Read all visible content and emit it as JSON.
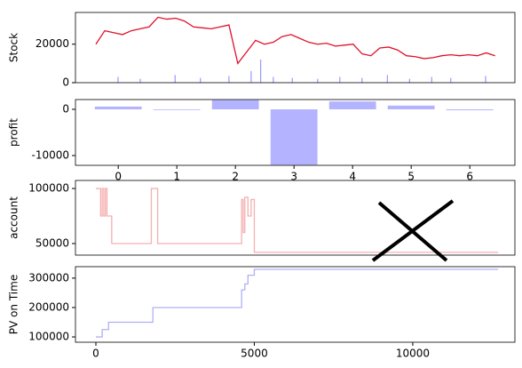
{
  "chart_data": [
    {
      "type": "line",
      "ylabel": "Stock",
      "xlim": [
        -644,
        13224
      ],
      "ylim": [
        0,
        36500
      ],
      "yticks": [
        0,
        20000
      ],
      "series": [
        {
          "type": "line",
          "color": "#e0102a",
          "x": [
            0,
            280,
            560,
            840,
            1120,
            1400,
            1680,
            1960,
            2240,
            2520,
            2800,
            3080,
            3360,
            3640,
            3920,
            4200,
            4480,
            4760,
            5040,
            5320,
            5600,
            5880,
            6160,
            6440,
            6720,
            7000,
            7280,
            7560,
            7840,
            8120,
            8400,
            8680,
            8960,
            9240,
            9520,
            9800,
            10080,
            10360,
            10640,
            10920,
            11200,
            11480,
            11760,
            12040,
            12320,
            12600
          ],
          "values": [
            20000,
            27000,
            26000,
            25000,
            27000,
            28000,
            29000,
            34000,
            33000,
            33500,
            32000,
            29000,
            28500,
            28000,
            29000,
            30000,
            10000,
            16000,
            22000,
            20000,
            21000,
            24000,
            25000,
            23000,
            21000,
            20000,
            20500,
            19000,
            19500,
            20000,
            15000,
            14000,
            18000,
            18500,
            17000,
            14000,
            13500,
            12500,
            13000,
            14000,
            14500,
            14000,
            14500,
            14000,
            15500,
            14000
          ]
        },
        {
          "type": "bar",
          "color": "#9999ff",
          "x": [
            700,
            1400,
            2500,
            3300,
            4200,
            4900,
            5200,
            5600,
            6200,
            7000,
            7700,
            8400,
            9200,
            9900,
            10600,
            11200,
            12300
          ],
          "values": [
            3000,
            2000,
            4000,
            2500,
            3500,
            6000,
            12000,
            3000,
            2500,
            2000,
            3000,
            2500,
            4000,
            2000,
            3000,
            2500,
            3500
          ]
        }
      ]
    },
    {
      "type": "bar",
      "ylabel": "profit",
      "color": "#b3b3ff",
      "x": [
        0,
        1,
        2,
        3,
        4,
        5,
        6
      ],
      "values": [
        600,
        -150,
        2000,
        -12000,
        1700,
        800,
        -200
      ],
      "xlim": [
        -0.73,
        6.77
      ],
      "xticks": [
        0,
        1,
        2,
        3,
        4,
        5,
        6
      ],
      "ylim": [
        -12115,
        2115
      ],
      "yticks": [
        -10000,
        0
      ]
    },
    {
      "type": "step",
      "ylabel": "account",
      "color": "#f4b0b0",
      "xlim": [
        -644,
        13224
      ],
      "ylim": [
        39500,
        107300
      ],
      "yticks": [
        50000,
        100000
      ],
      "x": [
        0,
        150,
        200,
        250,
        300,
        350,
        500,
        1750,
        1950,
        4600,
        4650,
        4700,
        4800,
        4900,
        5000,
        12700
      ],
      "values": [
        100000,
        75000,
        100000,
        75000,
        100000,
        75000,
        50000,
        100000,
        50000,
        90000,
        60000,
        92000,
        75000,
        90000,
        42000,
        42000
      ]
    },
    {
      "type": "step",
      "ylabel": "PV on Time",
      "color": "#b0b0f4",
      "xlim": [
        -644,
        13224
      ],
      "xticks": [
        0,
        5000,
        10000
      ],
      "ylim": [
        82000,
        339000
      ],
      "yticks": [
        100000,
        200000,
        300000
      ],
      "x": [
        0,
        200,
        400,
        1800,
        4600,
        4700,
        4800,
        5000,
        12700
      ],
      "values": [
        100000,
        125000,
        150000,
        200000,
        260000,
        280000,
        310000,
        330000,
        330000
      ]
    }
  ]
}
